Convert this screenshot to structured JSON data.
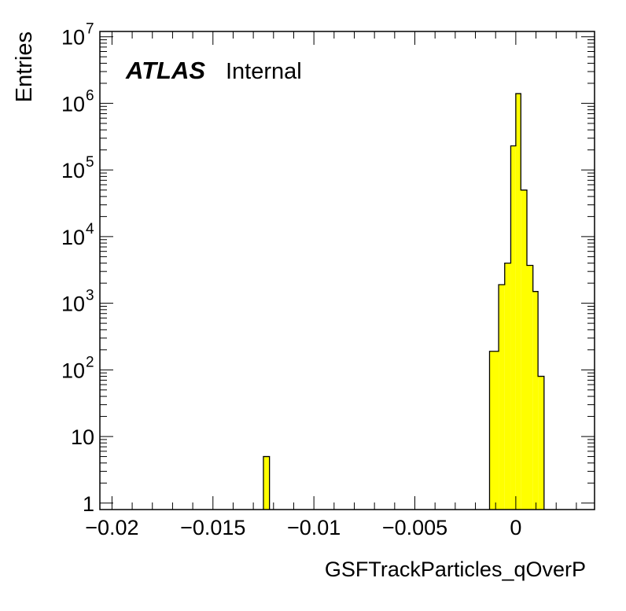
{
  "chart_data": {
    "type": "bar",
    "style": "histogram-step",
    "xlabel": "GSFTrackParticles_qOverP",
    "ylabel": "Entries",
    "label": {
      "experiment": "ATLAS",
      "status": "Internal"
    },
    "xlim": [
      -0.0206,
      0.0039
    ],
    "ylim": [
      0.8,
      12000000
    ],
    "yscale": "log",
    "fill_color": "#ffff00",
    "line_color": "#000000",
    "bin_width": 0.0005,
    "x_ticks": [
      {
        "value": -0.02,
        "label": "−0.02"
      },
      {
        "value": -0.015,
        "label": "−0.015"
      },
      {
        "value": -0.01,
        "label": "−0.01"
      },
      {
        "value": -0.005,
        "label": "−0.005"
      },
      {
        "value": 0,
        "label": "0"
      }
    ],
    "y_ticks": [
      {
        "value": 1,
        "label": "1",
        "exp": ""
      },
      {
        "value": 10,
        "label": "10",
        "exp": ""
      },
      {
        "value": 100,
        "label": "10",
        "exp": "2"
      },
      {
        "value": 1000,
        "label": "10",
        "exp": "3"
      },
      {
        "value": 10000,
        "label": "10",
        "exp": "4"
      },
      {
        "value": 100000,
        "label": "10",
        "exp": "5"
      },
      {
        "value": 1000000,
        "label": "10",
        "exp": "6"
      },
      {
        "value": 10000000,
        "label": "10",
        "exp": "7"
      }
    ],
    "bins": [
      {
        "x_low": -0.0125,
        "x_high": -0.0122,
        "value": 5
      },
      {
        "x_low": -0.0013,
        "x_high": -0.00085,
        "value": 190
      },
      {
        "x_low": -0.00085,
        "x_high": -0.00055,
        "value": 1900
      },
      {
        "x_low": -0.00055,
        "x_high": -0.00025,
        "value": 4000
      },
      {
        "x_low": -0.00025,
        "x_high": 0.0,
        "value": 230000
      },
      {
        "x_low": 0.0,
        "x_high": 0.00025,
        "value": 1400000
      },
      {
        "x_low": 0.00025,
        "x_high": 0.00055,
        "value": 50000
      },
      {
        "x_low": 0.00055,
        "x_high": 0.00085,
        "value": 3700
      },
      {
        "x_low": 0.00085,
        "x_high": 0.0011,
        "value": 1500
      },
      {
        "x_low": 0.0011,
        "x_high": 0.0014,
        "value": 80
      }
    ]
  }
}
